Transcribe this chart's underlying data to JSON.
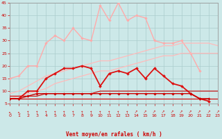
{
  "background_color": "#cce8e8",
  "grid_color": "#aacccc",
  "xlabel": "Vent moyen/en rafales ( km/h )",
  "text_color": "#cc0000",
  "xlim": [
    0,
    23
  ],
  "ylim": [
    5,
    45
  ],
  "yticks": [
    5,
    10,
    15,
    20,
    25,
    30,
    35,
    40,
    45
  ],
  "xticks": [
    0,
    1,
    2,
    3,
    4,
    5,
    6,
    7,
    8,
    9,
    10,
    11,
    12,
    13,
    14,
    15,
    16,
    17,
    18,
    19,
    20,
    21,
    22,
    23
  ],
  "series": [
    {
      "color": "#ffaaaa",
      "lw": 1.0,
      "marker": "D",
      "ms": 1.8,
      "y_x": [
        0,
        1,
        2,
        3,
        4,
        5,
        6,
        7,
        8,
        9,
        10,
        11,
        12,
        13,
        14,
        15,
        16,
        17,
        18,
        19,
        20,
        21
      ],
      "y": [
        15,
        16,
        20,
        20,
        29,
        32,
        30,
        35,
        31,
        30,
        44,
        38,
        45,
        38,
        40,
        39,
        30,
        29,
        29,
        30,
        25,
        18
      ]
    },
    {
      "color": "#ffbbbb",
      "lw": 0.9,
      "marker": null,
      "ms": 0,
      "y_x": [
        0,
        1,
        2,
        3,
        4,
        5,
        6,
        7,
        8,
        9,
        10,
        11,
        12,
        13,
        14,
        15,
        16,
        17,
        18,
        19,
        20,
        21,
        22,
        23
      ],
      "y": [
        9,
        10,
        12,
        14,
        16,
        17,
        18,
        19,
        20,
        21,
        22,
        22,
        23,
        24,
        25,
        26,
        27,
        28,
        28,
        29,
        29,
        29,
        29,
        28
      ]
    },
    {
      "color": "#ffbbbb",
      "lw": 0.9,
      "marker": null,
      "ms": 0,
      "y_x": [
        0,
        1,
        2,
        3,
        4,
        5,
        6,
        7,
        8,
        9,
        10,
        11,
        12,
        13,
        14,
        15,
        16,
        17,
        18,
        19,
        20,
        21,
        22,
        23
      ],
      "y": [
        7,
        8,
        9,
        10,
        11,
        13,
        14,
        15,
        16,
        17,
        18,
        18,
        19,
        20,
        21,
        22,
        23,
        24,
        24,
        25,
        25,
        25,
        25,
        25
      ]
    },
    {
      "color": "#dd1111",
      "lw": 1.3,
      "marker": "D",
      "ms": 2.0,
      "y_x": [
        0,
        1,
        2,
        3,
        4,
        5,
        6,
        7,
        8,
        9,
        10,
        11,
        12,
        13,
        14,
        15,
        16,
        17,
        18,
        19,
        20,
        21,
        22
      ],
      "y": [
        7,
        7,
        10,
        10,
        15,
        17,
        19,
        19,
        20,
        19,
        12,
        17,
        18,
        17,
        19,
        15,
        19,
        16,
        13,
        12,
        9,
        7,
        6
      ]
    },
    {
      "color": "#cc0000",
      "lw": 1.0,
      "marker": "D",
      "ms": 1.8,
      "y_x": [
        0,
        1,
        2,
        3,
        4,
        5,
        6,
        7,
        8,
        9,
        10,
        11,
        12,
        13,
        14,
        15,
        16,
        17,
        18,
        19,
        20,
        21,
        22
      ],
      "y": [
        7,
        7,
        8,
        9,
        9,
        9,
        9,
        9,
        9,
        9,
        9,
        9,
        9,
        9,
        9,
        9,
        9,
        9,
        9,
        9,
        9,
        7,
        7
      ]
    },
    {
      "color": "#cc0000",
      "lw": 0.8,
      "marker": null,
      "ms": 0,
      "y_x": [
        0,
        1,
        2,
        3,
        4,
        5,
        6,
        7,
        8,
        9,
        10,
        11,
        12,
        13,
        14,
        15,
        16,
        17,
        18,
        19,
        20,
        21,
        22,
        23
      ],
      "y": [
        8,
        8,
        8,
        8,
        9,
        9,
        9,
        9,
        9,
        9,
        10,
        10,
        10,
        10,
        10,
        10,
        10,
        10,
        10,
        10,
        10,
        10,
        10,
        10
      ]
    },
    {
      "color": "#cc0000",
      "lw": 0.8,
      "marker": null,
      "ms": 0,
      "y_x": [
        0,
        1,
        2,
        3,
        4,
        5,
        6,
        7,
        8,
        9,
        10,
        11,
        12,
        13,
        14,
        15,
        16,
        17,
        18,
        19,
        20,
        21,
        22,
        23
      ],
      "y": [
        7,
        7,
        7,
        7,
        7,
        7,
        7,
        7,
        7,
        7,
        7,
        7,
        7,
        7,
        7,
        7,
        7,
        7,
        7,
        7,
        7,
        7,
        7,
        7
      ]
    }
  ],
  "arrows": {
    "angles_deg": [
      225,
      225,
      270,
      270,
      270,
      270,
      270,
      270,
      270,
      270,
      270,
      270,
      270,
      270,
      315,
      315,
      315,
      315,
      315,
      315,
      315,
      315,
      315,
      315
    ]
  }
}
